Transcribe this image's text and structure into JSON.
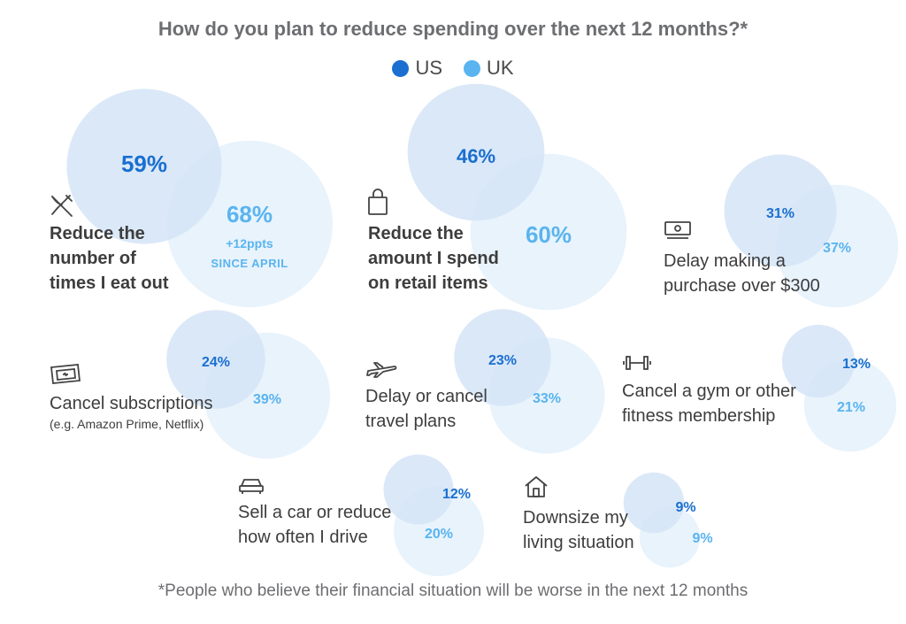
{
  "chart_data": {
    "type": "bubble",
    "title": "How do you plan to reduce spending over the next 12 months?*",
    "legend": [
      {
        "name": "US",
        "color": "#1a6fd0"
      },
      {
        "name": "UK",
        "color": "#5ab4ef"
      }
    ],
    "colors": {
      "us_fill": "#d5e4f7",
      "uk_fill": "#e6f2fc",
      "us_text": "#1a6fd0",
      "uk_text": "#5ab4ef"
    },
    "categories": [
      {
        "label": "Reduce the number of times I eat out",
        "icon": "utensils-icon",
        "us": 59,
        "uk": 68,
        "us_text": "59%",
        "uk_text": "68%",
        "note_line1": "+12ppts",
        "note_line2": "SINCE APRIL"
      },
      {
        "label": "Reduce the amount I spend on retail items",
        "icon": "shopping-bag-icon",
        "us": 46,
        "uk": 60,
        "us_text": "46%",
        "uk_text": "60%"
      },
      {
        "label": "Delay making a purchase over $300",
        "icon": "cash-icon",
        "us": 31,
        "uk": 37,
        "us_text": "31%",
        "uk_text": "37%"
      },
      {
        "label": "Cancel subscriptions",
        "sublabel": "(e.g. Amazon Prime, Netflix)",
        "icon": "ticket-icon",
        "us": 24,
        "uk": 39,
        "us_text": "24%",
        "uk_text": "39%"
      },
      {
        "label": "Delay or cancel travel plans",
        "icon": "airplane-icon",
        "us": 23,
        "uk": 33,
        "us_text": "23%",
        "uk_text": "33%"
      },
      {
        "label": "Cancel a gym or other fitness membership",
        "icon": "dumbbell-icon",
        "us": 13,
        "uk": 21,
        "us_text": "13%",
        "uk_text": "21%"
      },
      {
        "label": "Sell a car or reduce how often I drive",
        "icon": "car-icon",
        "us": 12,
        "uk": 20,
        "us_text": "12%",
        "uk_text": "20%"
      },
      {
        "label": "Downsize my living situation",
        "icon": "house-icon",
        "us": 9,
        "uk": 9,
        "us_text": "9%",
        "uk_text": "9%"
      }
    ],
    "footnote": "*People who believe their financial situation will be worse in the next 12 months"
  }
}
